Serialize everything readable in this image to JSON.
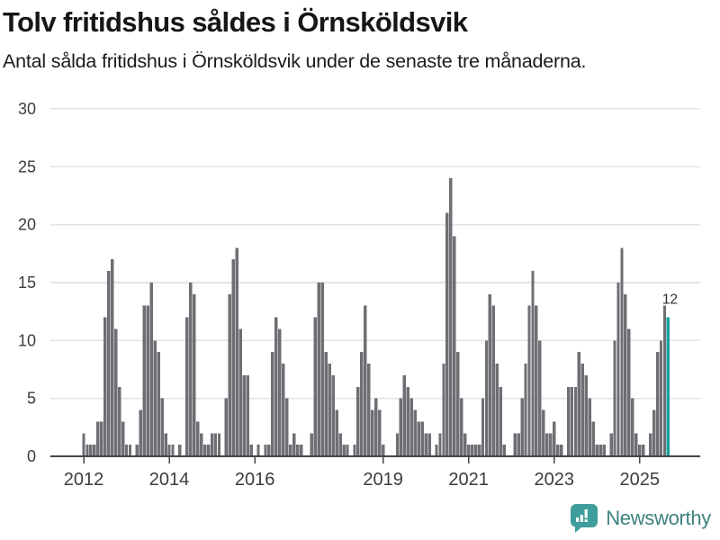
{
  "header": {
    "title": "Tolv fritidshus såldes i Örnsköldsvik",
    "subtitle": "Antal sålda fritidshus i Örnsköldsvik under de senaste tre månaderna."
  },
  "chart_data": {
    "type": "bar",
    "title": "Tolv fritidshus såldes i Örnsköldsvik",
    "subtitle": "Antal sålda fritidshus i Örnsköldsvik under de senaste tre månaderna.",
    "unit": "sålda fritidshus (rullande tre månader)",
    "start_month": "2012-01",
    "end_month": "2025-09",
    "series_by_year": [
      {
        "year": 2012,
        "values": [
          2,
          1,
          1,
          1,
          3,
          3,
          12,
          16,
          17,
          11,
          6,
          3
        ]
      },
      {
        "year": 2013,
        "values": [
          1,
          1,
          0,
          1,
          4,
          13,
          13,
          15,
          10,
          9,
          5,
          2
        ]
      },
      {
        "year": 2014,
        "values": [
          1,
          1,
          0,
          1,
          0,
          12,
          15,
          14,
          3,
          2,
          1,
          1
        ]
      },
      {
        "year": 2015,
        "values": [
          2,
          2,
          2,
          0,
          5,
          14,
          17,
          18,
          11,
          7,
          7,
          1
        ]
      },
      {
        "year": 2016,
        "values": [
          0,
          1,
          0,
          1,
          1,
          9,
          12,
          11,
          8,
          5,
          1,
          2
        ]
      },
      {
        "year": 2017,
        "values": [
          1,
          1,
          0,
          0,
          2,
          12,
          15,
          15,
          9,
          8,
          7,
          4
        ]
      },
      {
        "year": 2018,
        "values": [
          2,
          1,
          1,
          0,
          1,
          6,
          9,
          13,
          8,
          4,
          5,
          4
        ]
      },
      {
        "year": 2019,
        "values": [
          1,
          0,
          0,
          0,
          2,
          5,
          7,
          6,
          5,
          4,
          3,
          3
        ]
      },
      {
        "year": 2020,
        "values": [
          2,
          2,
          0,
          1,
          2,
          8,
          21,
          24,
          19,
          9,
          5,
          2
        ]
      },
      {
        "year": 2021,
        "values": [
          1,
          1,
          1,
          1,
          5,
          10,
          14,
          13,
          8,
          6,
          1,
          0
        ]
      },
      {
        "year": 2022,
        "values": [
          0,
          2,
          2,
          5,
          8,
          13,
          16,
          13,
          10,
          4,
          2,
          2
        ]
      },
      {
        "year": 2023,
        "values": [
          3,
          1,
          1,
          0,
          6,
          6,
          6,
          9,
          8,
          7,
          5,
          3
        ]
      },
      {
        "year": 2024,
        "values": [
          1,
          1,
          1,
          0,
          2,
          10,
          15,
          18,
          14,
          11,
          5,
          2
        ]
      },
      {
        "year": 2025,
        "values": [
          1,
          1,
          0,
          2,
          4,
          9,
          10,
          13,
          12
        ]
      }
    ],
    "highlight": {
      "position": "last",
      "value": 12,
      "label": "12"
    },
    "y_ticks": [
      0,
      5,
      10,
      15,
      20,
      25,
      30
    ],
    "ylim": [
      0,
      30
    ],
    "x_tick_years": [
      2012,
      2014,
      2016,
      2019,
      2021,
      2023,
      2025
    ],
    "grid": true,
    "legend": "none",
    "colors": {
      "bar": "#6f6e74",
      "highlight": "#18a19e",
      "gridline": "#e3e3e3",
      "axis_line": "#454545",
      "tick_label": "#3c3c3c",
      "annotation": "#2d2d2d"
    }
  },
  "footer": {
    "brand": "Newsworthy",
    "logo_colors": {
      "bubble": "#3f9e9b",
      "glyph": "#ffffff"
    }
  }
}
